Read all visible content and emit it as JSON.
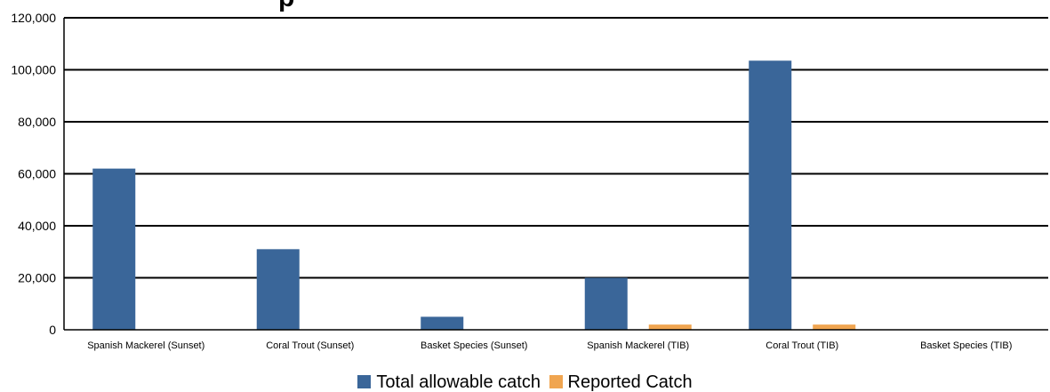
{
  "chart_data": {
    "type": "bar",
    "title": "p",
    "categories": [
      "Spanish Mackerel (Sunset)",
      "Coral Trout (Sunset)",
      "Basket Species (Sunset)",
      "Spanish Mackerel (TIB)",
      "Coral Trout (TIB)",
      "Basket Species (TIB)"
    ],
    "series": [
      {
        "name": "Total allowable catch",
        "color": "#3a6699",
        "values": [
          62000,
          31000,
          5000,
          20000,
          103500,
          0
        ]
      },
      {
        "name": "Reported Catch",
        "color": "#f0a550",
        "values": [
          0,
          0,
          0,
          2000,
          2000,
          0
        ]
      }
    ],
    "ylim": [
      0,
      120000
    ],
    "yticks": [
      "0",
      "20,000",
      "40,000",
      "60,000",
      "80,000",
      "100,000",
      "120,000"
    ],
    "yticks_values": [
      0,
      20000,
      40000,
      60000,
      80000,
      100000,
      120000
    ],
    "grid": true,
    "legend_position": "bottom-center",
    "xlabel": "",
    "ylabel": ""
  }
}
